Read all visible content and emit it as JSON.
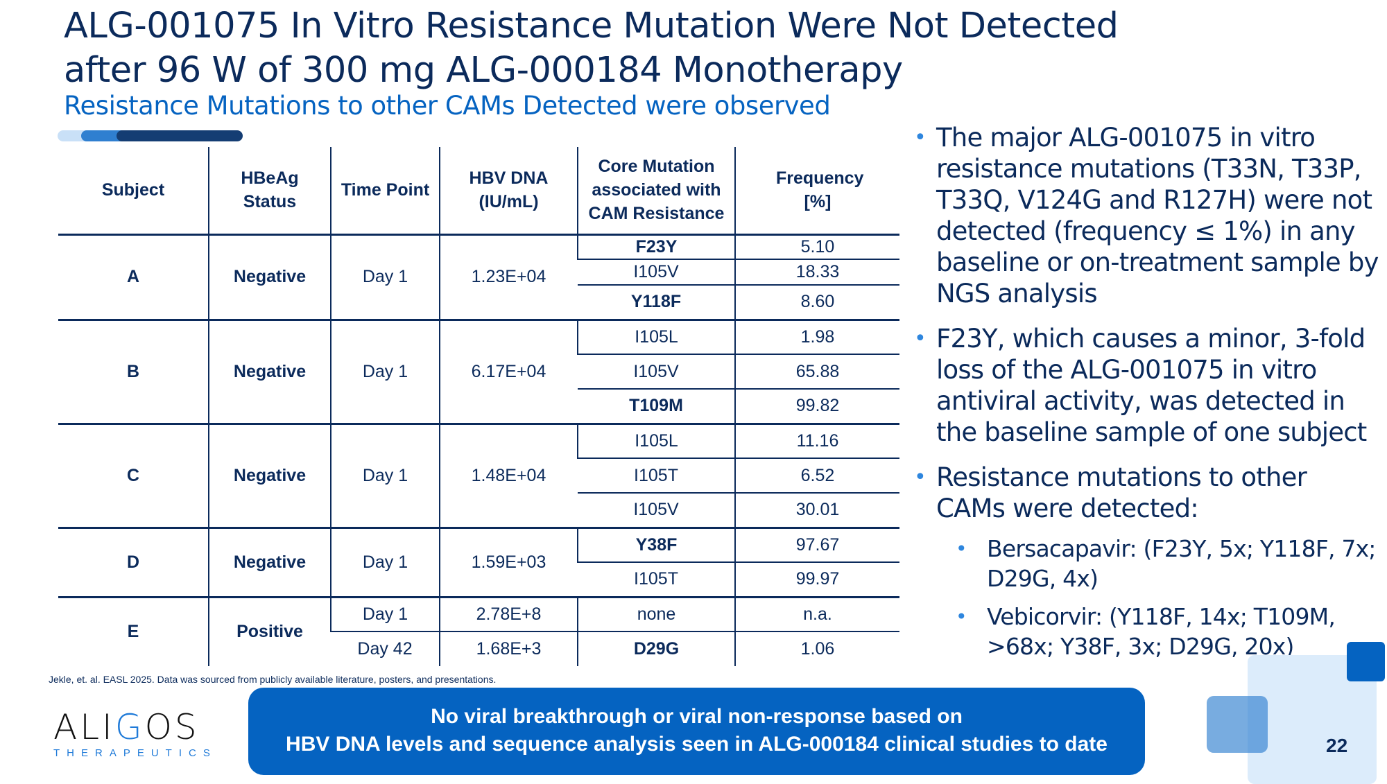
{
  "title": {
    "line1": "ALG-001075 In Vitro Resistance Mutation Were Not Detected",
    "line2": "after 96 W of 300 mg ALG-000184 Monotherapy"
  },
  "subtitle": "Resistance Mutations to other CAMs Detected were observed",
  "table": {
    "headers": [
      "Subject",
      "HBeAg Status",
      "Time Point",
      "HBV DNA (IU/mL)",
      "Core Mutation associated with CAM Resistance",
      "Frequency [%]"
    ],
    "subjects": [
      {
        "subject": "A",
        "status": "Negative",
        "timepoints": [
          {
            "time": "Day 1",
            "dna": "1.23E+04",
            "mutations": [
              {
                "m": "F23Y",
                "f": "5.10",
                "bold": true
              },
              {
                "m": "I105V",
                "f": "18.33"
              },
              {
                "m": "Y118F",
                "f": "8.60",
                "bold": true
              }
            ]
          }
        ]
      },
      {
        "subject": "B",
        "status": "Negative",
        "timepoints": [
          {
            "time": "Day 1",
            "dna": "6.17E+04",
            "mutations": [
              {
                "m": "I105L",
                "f": "1.98"
              },
              {
                "m": "I105V",
                "f": "65.88"
              },
              {
                "m": "T109M",
                "f": "99.82",
                "bold": true
              }
            ]
          }
        ]
      },
      {
        "subject": "C",
        "status": "Negative",
        "timepoints": [
          {
            "time": "Day 1",
            "dna": "1.48E+04",
            "mutations": [
              {
                "m": "I105L",
                "f": "11.16"
              },
              {
                "m": "I105T",
                "f": "6.52"
              },
              {
                "m": "I105V",
                "f": "30.01"
              }
            ]
          }
        ]
      },
      {
        "subject": "D",
        "status": "Negative",
        "timepoints": [
          {
            "time": "Day 1",
            "dna": "1.59E+03",
            "mutations": [
              {
                "m": "Y38F",
                "f": "97.67",
                "bold": true
              },
              {
                "m": "I105T",
                "f": "99.97"
              }
            ]
          }
        ]
      },
      {
        "subject": "E",
        "status": "Positive",
        "timepoints": [
          {
            "time": "Day 1",
            "dna": "2.78E+8",
            "mutations": [
              {
                "m": "none",
                "f": "n.a."
              }
            ]
          },
          {
            "time": "Day 42",
            "dna": "1.68E+3",
            "mutations": [
              {
                "m": "D29G",
                "f": "1.06",
                "bold": true
              }
            ]
          }
        ]
      }
    ]
  },
  "bullets": [
    "The major ALG-001075 in vitro resistance mutations (T33N, T33P, T33Q, V124G and R127H) were not detected (frequency ≤ 1%) in any baseline or on-treatment sample by NGS analysis",
    "F23Y, which causes a minor, 3-fold loss of the ALG-001075 in vitro antiviral activity, was detected in the baseline sample of one subject",
    "Resistance mutations to other CAMs were detected:"
  ],
  "sub_bullets": [
    "Bersacapavir: (F23Y, 5x; Y118F, 7x; D29G, 4x)",
    "Vebicorvir: (Y118F, 14x; T109M, >68x; Y38F, 3x; D29G, 20x)"
  ],
  "footnote": "Jekle, et. al. EASL 2025. Data was sourced from publicly available literature, posters, and presentations.",
  "logo": {
    "name": "ALIGOS",
    "tagline": "THERAPEUTICS"
  },
  "banner": {
    "line1": "No viral breakthrough or viral non-response based on",
    "line2": "HBV DNA levels and sequence analysis seen in ALG-000184 clinical studies to date"
  },
  "page_number": "22",
  "colors": {
    "navy": "#0b2a5b",
    "accent": "#0563c1"
  }
}
